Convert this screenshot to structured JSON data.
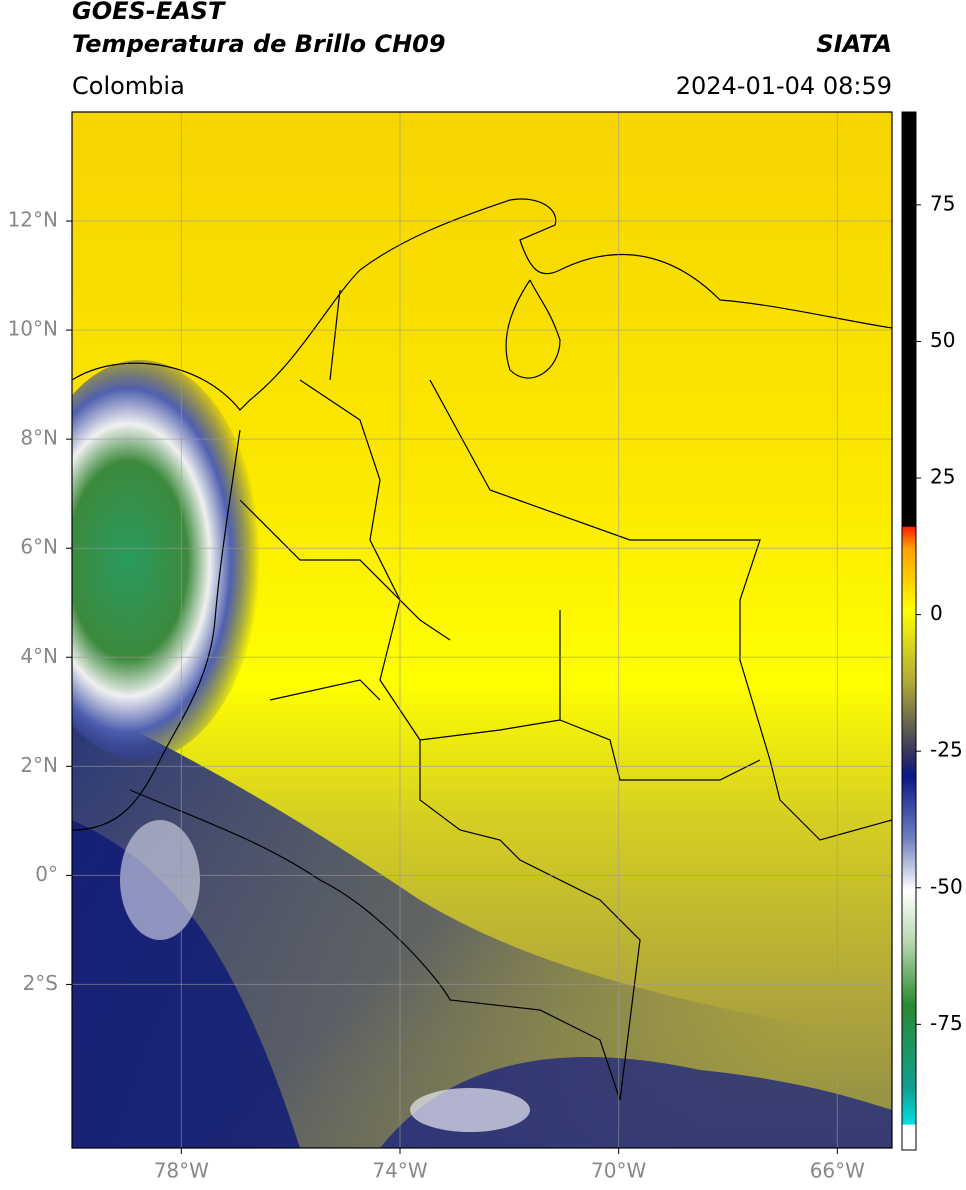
{
  "header": {
    "title": "GOES-EAST",
    "subtitle": "Temperatura de Brillo CH09",
    "region": "Colombia",
    "source": "SIATA",
    "timestamp": "2024-01-04 08:59"
  },
  "map": {
    "xlim": [
      -80,
      -65
    ],
    "ylim": [
      -5,
      14
    ],
    "xticks": [
      {
        "value": -78,
        "label": "78°W"
      },
      {
        "value": -74,
        "label": "74°W"
      },
      {
        "value": -70,
        "label": "70°W"
      },
      {
        "value": -66,
        "label": "66°W"
      }
    ],
    "yticks": [
      {
        "value": 12,
        "label": "12°N"
      },
      {
        "value": 10,
        "label": "10°N"
      },
      {
        "value": 8,
        "label": "8°N"
      },
      {
        "value": 6,
        "label": "6°N"
      },
      {
        "value": 4,
        "label": "4°N"
      },
      {
        "value": 2,
        "label": "2°N"
      },
      {
        "value": 0,
        "label": "0°"
      },
      {
        "value": -2,
        "label": "2°S"
      }
    ],
    "grid": true
  },
  "colorbar": {
    "lim": [
      -98,
      92
    ],
    "ticks": [
      75,
      50,
      25,
      0,
      -25,
      -50,
      -75
    ]
  }
}
